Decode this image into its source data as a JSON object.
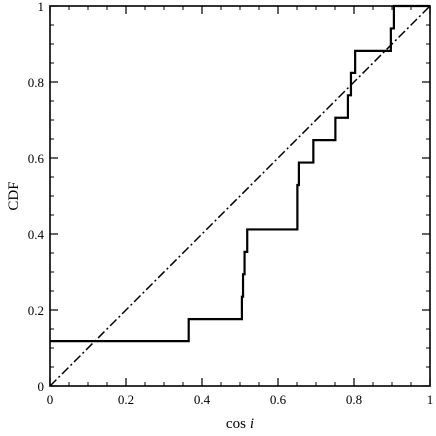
{
  "chart_data": {
    "type": "line",
    "title": "",
    "xlabel": "cos",
    "xlabel_italic": "i",
    "ylabel": "CDF",
    "xlim": [
      0,
      1
    ],
    "ylim": [
      0,
      1
    ],
    "grid": false,
    "legend": "none",
    "x_ticks": [
      "0",
      "0.2",
      "0.4",
      "0.6",
      "0.8",
      "1"
    ],
    "y_ticks": [
      "0",
      "0.2",
      "0.4",
      "0.6",
      "0.8",
      "1"
    ],
    "series": [
      {
        "style": "solid step",
        "color": "#000000",
        "x": [
          0,
          0.365,
          0.365,
          0.505,
          0.505,
          0.508,
          0.508,
          0.512,
          0.512,
          0.519,
          0.519,
          0.524,
          0.524,
          0.651,
          0.651,
          0.655,
          0.655,
          0.693,
          0.693,
          0.751,
          0.751,
          0.784,
          0.784,
          0.792,
          0.792,
          0.803,
          0.803,
          0.897,
          0.897,
          0.905,
          0.905,
          0.915,
          0.915,
          1.0
        ],
        "y": [
          0.118,
          0.118,
          0.176,
          0.176,
          0.235,
          0.235,
          0.294,
          0.294,
          0.353,
          0.353,
          0.412,
          0.412,
          0.412,
          0.412,
          0.529,
          0.529,
          0.588,
          0.588,
          0.647,
          0.647,
          0.706,
          0.706,
          0.765,
          0.765,
          0.824,
          0.824,
          0.882,
          0.882,
          0.941,
          0.941,
          1.0,
          1.0,
          1.0,
          1.0
        ]
      },
      {
        "style": "dash-dot",
        "color": "#000000",
        "x": [
          0,
          1
        ],
        "y": [
          0,
          1
        ]
      }
    ]
  }
}
